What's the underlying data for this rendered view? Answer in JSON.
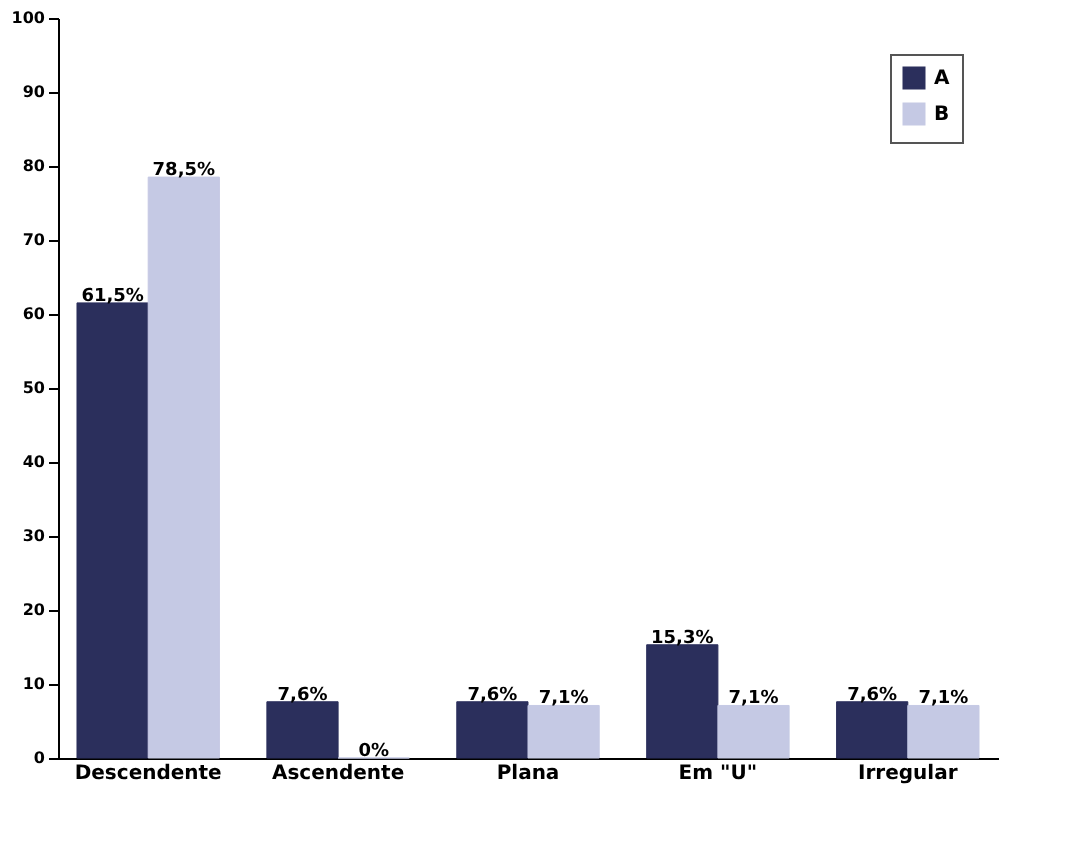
{
  "chart_data": {
    "type": "bar",
    "categories": [
      "Descendente",
      "Ascendente",
      "Plana",
      "Em \"U\"",
      "Irregular"
    ],
    "series": [
      {
        "name": "A",
        "color": "#2b2f5c",
        "values": [
          61.5,
          7.6,
          7.6,
          15.3,
          7.6
        ],
        "value_labels": [
          "61,5%",
          "7,6%",
          "7,6%",
          "15,3%",
          "7,6%"
        ]
      },
      {
        "name": "B",
        "color": "#c5c9e4",
        "values": [
          78.5,
          0,
          7.1,
          7.1,
          7.1
        ],
        "value_labels": [
          "78,5%",
          "0%",
          "7,1%",
          "7,1%",
          "7,1%"
        ]
      }
    ],
    "ylim": [
      0,
      100
    ],
    "yticks": [
      0,
      10,
      20,
      30,
      40,
      50,
      60,
      70,
      80,
      90,
      100
    ],
    "grid": false,
    "legend": "top right"
  }
}
